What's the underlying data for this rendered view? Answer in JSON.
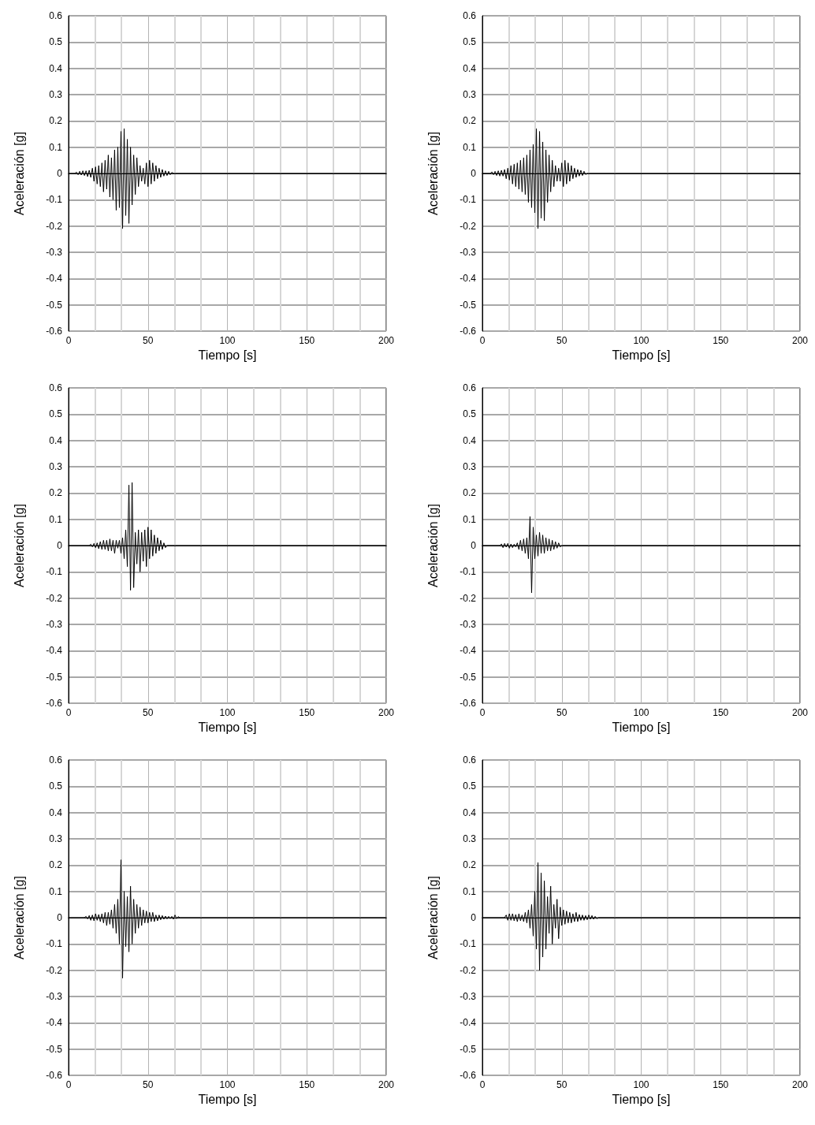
{
  "chart_data": [
    {
      "type": "line",
      "xlabel": "Tiempo [s]",
      "ylabel": "Aceleración [g]",
      "color": "#000000",
      "grid": true,
      "xlim": [
        0,
        200
      ],
      "ylim": [
        -0.6,
        0.6
      ],
      "xticks": [
        0,
        {
          "value": 16.7,
          "label": null
        },
        {
          "value": 33.3,
          "label": null
        },
        50,
        {
          "value": 66.7,
          "label": null
        },
        {
          "value": 83.3,
          "label": null
        },
        100,
        {
          "value": 116.7,
          "label": null
        },
        {
          "value": 133.3,
          "label": null
        },
        150,
        {
          "value": 166.7,
          "label": null
        },
        {
          "value": 183.3,
          "label": null
        },
        200
      ],
      "yticks": [
        -0.6,
        -0.5,
        -0.4,
        -0.3,
        -0.2,
        -0.1,
        0,
        0.1,
        0.2,
        0.3,
        0.4,
        0.5,
        0.6
      ],
      "x": [
        0,
        4,
        5,
        6,
        7,
        8,
        9,
        10,
        11,
        12,
        13,
        14,
        15,
        16,
        17,
        18,
        19,
        20,
        21,
        22,
        23,
        24,
        25,
        26,
        27,
        28,
        29,
        30,
        31,
        32,
        33,
        34,
        35,
        36,
        37,
        38,
        39,
        40,
        41,
        42,
        43,
        44,
        45,
        46,
        47,
        48,
        49,
        50,
        51,
        52,
        53,
        54,
        55,
        56,
        57,
        58,
        59,
        60,
        61,
        62,
        63,
        64,
        65,
        66,
        200
      ],
      "values": [
        0,
        0,
        0.005,
        -0.005,
        0.008,
        -0.006,
        0.01,
        -0.008,
        0.01,
        -0.012,
        0.012,
        -0.015,
        0.02,
        -0.03,
        0.025,
        -0.04,
        0.03,
        -0.05,
        0.04,
        -0.07,
        0.05,
        -0.06,
        0.07,
        -0.09,
        0.06,
        -0.1,
        0.09,
        -0.14,
        0.1,
        -0.13,
        0.16,
        -0.21,
        0.17,
        -0.16,
        0.13,
        -0.19,
        0.1,
        -0.12,
        0.07,
        -0.08,
        0.06,
        -0.05,
        0.03,
        -0.03,
        0.02,
        -0.04,
        0.04,
        -0.05,
        0.05,
        -0.04,
        0.04,
        -0.03,
        0.03,
        -0.02,
        0.02,
        -0.015,
        0.015,
        -0.01,
        0.01,
        -0.008,
        0.008,
        -0.005,
        0.004,
        0,
        0
      ]
    },
    {
      "type": "line",
      "xlabel": "Tiempo [s]",
      "ylabel": "Aceleración [g]",
      "color": "#000000",
      "grid": true,
      "xlim": [
        0,
        200
      ],
      "ylim": [
        -0.6,
        0.6
      ],
      "xticks": [
        0,
        {
          "value": 16.7,
          "label": null
        },
        {
          "value": 33.3,
          "label": null
        },
        50,
        {
          "value": 66.7,
          "label": null
        },
        {
          "value": 83.3,
          "label": null
        },
        100,
        {
          "value": 116.7,
          "label": null
        },
        {
          "value": 133.3,
          "label": null
        },
        150,
        {
          "value": 166.7,
          "label": null
        },
        {
          "value": 183.3,
          "label": null
        },
        200
      ],
      "yticks": [
        -0.6,
        -0.5,
        -0.4,
        -0.3,
        -0.2,
        -0.1,
        0,
        0.1,
        0.2,
        0.3,
        0.4,
        0.5,
        0.6
      ],
      "x": [
        0,
        5,
        6,
        7,
        8,
        9,
        10,
        11,
        12,
        13,
        14,
        15,
        16,
        17,
        18,
        19,
        20,
        21,
        22,
        23,
        24,
        25,
        26,
        27,
        28,
        29,
        30,
        31,
        32,
        33,
        34,
        35,
        36,
        37,
        38,
        39,
        40,
        41,
        42,
        43,
        44,
        45,
        46,
        47,
        48,
        49,
        50,
        51,
        52,
        53,
        54,
        55,
        56,
        57,
        58,
        59,
        60,
        61,
        62,
        63,
        64,
        65,
        66,
        200
      ],
      "values": [
        0,
        0,
        0.006,
        -0.005,
        0.008,
        -0.008,
        0.01,
        -0.01,
        0.012,
        -0.01,
        0.015,
        -0.02,
        0.02,
        -0.025,
        0.03,
        -0.04,
        0.035,
        -0.05,
        0.04,
        -0.06,
        0.05,
        -0.07,
        0.06,
        -0.08,
        0.07,
        -0.11,
        0.09,
        -0.13,
        0.11,
        -0.15,
        0.17,
        -0.21,
        0.16,
        -0.17,
        0.12,
        -0.18,
        0.09,
        -0.11,
        0.07,
        -0.07,
        0.05,
        -0.05,
        0.03,
        -0.03,
        0.02,
        -0.03,
        0.04,
        -0.05,
        0.05,
        -0.04,
        0.04,
        -0.03,
        0.03,
        -0.02,
        0.02,
        -0.015,
        0.015,
        -0.01,
        0.012,
        -0.008,
        0.008,
        -0.004,
        0,
        0
      ]
    },
    {
      "type": "line",
      "xlabel": "Tiempo [s]",
      "ylabel": "Aceleración [g]",
      "color": "#000000",
      "grid": true,
      "xlim": [
        0,
        200
      ],
      "ylim": [
        -0.6,
        0.6
      ],
      "xticks": [
        0,
        {
          "value": 16.7,
          "label": null
        },
        {
          "value": 33.3,
          "label": null
        },
        50,
        {
          "value": 66.7,
          "label": null
        },
        {
          "value": 83.3,
          "label": null
        },
        100,
        {
          "value": 116.7,
          "label": null
        },
        {
          "value": 133.3,
          "label": null
        },
        150,
        {
          "value": 166.7,
          "label": null
        },
        {
          "value": 183.3,
          "label": null
        },
        200
      ],
      "yticks": [
        -0.6,
        -0.5,
        -0.4,
        -0.3,
        -0.2,
        -0.1,
        0,
        0.1,
        0.2,
        0.3,
        0.4,
        0.5,
        0.6
      ],
      "x": [
        0,
        13,
        14,
        15,
        16,
        17,
        18,
        19,
        20,
        21,
        22,
        23,
        24,
        25,
        26,
        27,
        28,
        29,
        30,
        31,
        32,
        33,
        34,
        35,
        36,
        37,
        38,
        39,
        40,
        41,
        42,
        43,
        44,
        45,
        46,
        47,
        48,
        49,
        50,
        51,
        52,
        53,
        54,
        55,
        56,
        57,
        58,
        59,
        60,
        61,
        62,
        200
      ],
      "values": [
        0,
        0,
        0.005,
        -0.005,
        0.008,
        -0.008,
        0.01,
        -0.012,
        0.015,
        -0.015,
        0.02,
        -0.015,
        0.02,
        -0.02,
        0.025,
        -0.02,
        0.02,
        -0.03,
        0.02,
        -0.01,
        0.02,
        -0.03,
        0.03,
        -0.05,
        0.06,
        -0.08,
        0.23,
        -0.17,
        0.24,
        -0.16,
        0.05,
        -0.07,
        0.06,
        -0.1,
        0.05,
        -0.06,
        0.06,
        -0.08,
        0.07,
        -0.05,
        0.06,
        -0.04,
        0.04,
        -0.03,
        0.03,
        -0.02,
        0.02,
        -0.015,
        0.01,
        -0.008,
        0,
        0
      ]
    },
    {
      "type": "line",
      "xlabel": "Tiempo [s]",
      "ylabel": "Aceleración [g]",
      "color": "#000000",
      "grid": true,
      "xlim": [
        0,
        200
      ],
      "ylim": [
        -0.6,
        0.6
      ],
      "xticks": [
        0,
        {
          "value": 16.7,
          "label": null
        },
        {
          "value": 33.3,
          "label": null
        },
        50,
        {
          "value": 66.7,
          "label": null
        },
        {
          "value": 83.3,
          "label": null
        },
        100,
        {
          "value": 116.7,
          "label": null
        },
        {
          "value": 133.3,
          "label": null
        },
        150,
        {
          "value": 166.7,
          "label": null
        },
        {
          "value": 183.3,
          "label": null
        },
        200
      ],
      "yticks": [
        -0.6,
        -0.5,
        -0.4,
        -0.3,
        -0.2,
        -0.1,
        0,
        0.1,
        0.2,
        0.3,
        0.4,
        0.5,
        0.6
      ],
      "x": [
        0,
        11,
        12,
        13,
        14,
        15,
        16,
        17,
        18,
        19,
        20,
        21,
        22,
        23,
        24,
        25,
        26,
        27,
        28,
        29,
        30,
        31,
        32,
        33,
        34,
        35,
        36,
        37,
        38,
        39,
        40,
        41,
        42,
        43,
        44,
        45,
        46,
        47,
        48,
        49,
        50,
        200
      ],
      "values": [
        0,
        0,
        0.006,
        -0.008,
        0.008,
        -0.006,
        0.008,
        -0.01,
        0.006,
        -0.008,
        0.005,
        -0.005,
        0.01,
        -0.015,
        0.02,
        -0.02,
        0.025,
        -0.03,
        0.03,
        -0.05,
        0.11,
        -0.18,
        0.07,
        -0.05,
        0.04,
        -0.04,
        0.05,
        -0.03,
        0.04,
        -0.03,
        0.03,
        -0.02,
        0.025,
        -0.02,
        0.02,
        -0.015,
        0.015,
        -0.01,
        0.01,
        -0.005,
        0,
        0
      ]
    },
    {
      "type": "line",
      "xlabel": "Tiempo [s]",
      "ylabel": "Aceleración [g]",
      "color": "#000000",
      "grid": true,
      "xlim": [
        0,
        200
      ],
      "ylim": [
        -0.6,
        0.6
      ],
      "xticks": [
        0,
        {
          "value": 16.7,
          "label": null
        },
        {
          "value": 33.3,
          "label": null
        },
        50,
        {
          "value": 66.7,
          "label": null
        },
        {
          "value": 83.3,
          "label": null
        },
        100,
        {
          "value": 116.7,
          "label": null
        },
        {
          "value": 133.3,
          "label": null
        },
        150,
        {
          "value": 166.7,
          "label": null
        },
        {
          "value": 183.3,
          "label": null
        },
        200
      ],
      "yticks": [
        -0.6,
        -0.5,
        -0.4,
        -0.3,
        -0.2,
        -0.1,
        0,
        0.1,
        0.2,
        0.3,
        0.4,
        0.5,
        0.6
      ],
      "x": [
        0,
        10,
        11,
        12,
        13,
        14,
        15,
        16,
        17,
        18,
        19,
        20,
        21,
        22,
        23,
        24,
        25,
        26,
        27,
        28,
        29,
        30,
        31,
        32,
        33,
        34,
        35,
        36,
        37,
        38,
        39,
        40,
        41,
        42,
        43,
        44,
        45,
        46,
        47,
        48,
        49,
        50,
        51,
        52,
        53,
        54,
        55,
        56,
        57,
        58,
        59,
        60,
        61,
        62,
        63,
        64,
        65,
        66,
        67,
        68,
        69,
        70,
        200
      ],
      "values": [
        0,
        0,
        0.005,
        -0.005,
        0.008,
        -0.01,
        0.01,
        -0.012,
        0.015,
        -0.01,
        0.012,
        -0.015,
        0.015,
        -0.02,
        0.02,
        -0.03,
        0.02,
        -0.025,
        0.03,
        -0.04,
        0.05,
        -0.06,
        0.07,
        -0.1,
        0.22,
        -0.23,
        0.1,
        -0.11,
        0.08,
        -0.13,
        0.12,
        -0.1,
        0.07,
        -0.06,
        0.05,
        -0.04,
        0.04,
        -0.03,
        0.03,
        -0.02,
        0.025,
        -0.02,
        0.02,
        -0.015,
        0.02,
        -0.015,
        0.01,
        -0.012,
        0.01,
        -0.008,
        0.008,
        -0.006,
        0.006,
        -0.005,
        0.005,
        -0.004,
        0.005,
        -0.006,
        0.01,
        -0.004,
        0.004,
        0,
        0
      ]
    },
    {
      "type": "line",
      "xlabel": "Tiempo [s]",
      "ylabel": "Aceleración [g]",
      "color": "#000000",
      "grid": true,
      "xlim": [
        0,
        200
      ],
      "ylim": [
        -0.6,
        0.6
      ],
      "xticks": [
        0,
        {
          "value": 16.7,
          "label": null
        },
        {
          "value": 33.3,
          "label": null
        },
        50,
        {
          "value": 66.7,
          "label": null
        },
        {
          "value": 83.3,
          "label": null
        },
        100,
        {
          "value": 116.7,
          "label": null
        },
        {
          "value": 133.3,
          "label": null
        },
        150,
        {
          "value": 166.7,
          "label": null
        },
        {
          "value": 183.3,
          "label": null
        },
        200
      ],
      "yticks": [
        -0.6,
        -0.5,
        -0.4,
        -0.3,
        -0.2,
        -0.1,
        0,
        0.1,
        0.2,
        0.3,
        0.4,
        0.5,
        0.6
      ],
      "x": [
        0,
        14,
        15,
        16,
        17,
        18,
        19,
        20,
        21,
        22,
        23,
        24,
        25,
        26,
        27,
        28,
        29,
        30,
        31,
        32,
        33,
        34,
        35,
        36,
        37,
        38,
        39,
        40,
        41,
        42,
        43,
        44,
        45,
        46,
        47,
        48,
        49,
        50,
        51,
        52,
        53,
        54,
        55,
        56,
        57,
        58,
        59,
        60,
        61,
        62,
        63,
        64,
        65,
        66,
        67,
        68,
        69,
        70,
        71,
        72,
        73,
        200
      ],
      "values": [
        0,
        0,
        0.01,
        -0.01,
        0.015,
        -0.01,
        0.015,
        -0.012,
        0.012,
        -0.015,
        0.015,
        -0.012,
        0.01,
        -0.015,
        0.02,
        -0.02,
        0.03,
        -0.04,
        0.05,
        -0.07,
        0.1,
        -0.12,
        0.21,
        -0.2,
        0.17,
        -0.15,
        0.14,
        -0.12,
        0.08,
        -0.06,
        0.12,
        -0.1,
        0.05,
        -0.04,
        0.07,
        -0.08,
        0.04,
        -0.03,
        0.03,
        -0.025,
        0.025,
        -0.02,
        0.02,
        -0.02,
        0.015,
        -0.015,
        0.02,
        -0.015,
        0.012,
        -0.01,
        0.01,
        -0.01,
        0.008,
        -0.008,
        0.01,
        -0.006,
        0.008,
        -0.006,
        0.005,
        -0.004,
        0,
        0
      ]
    }
  ]
}
